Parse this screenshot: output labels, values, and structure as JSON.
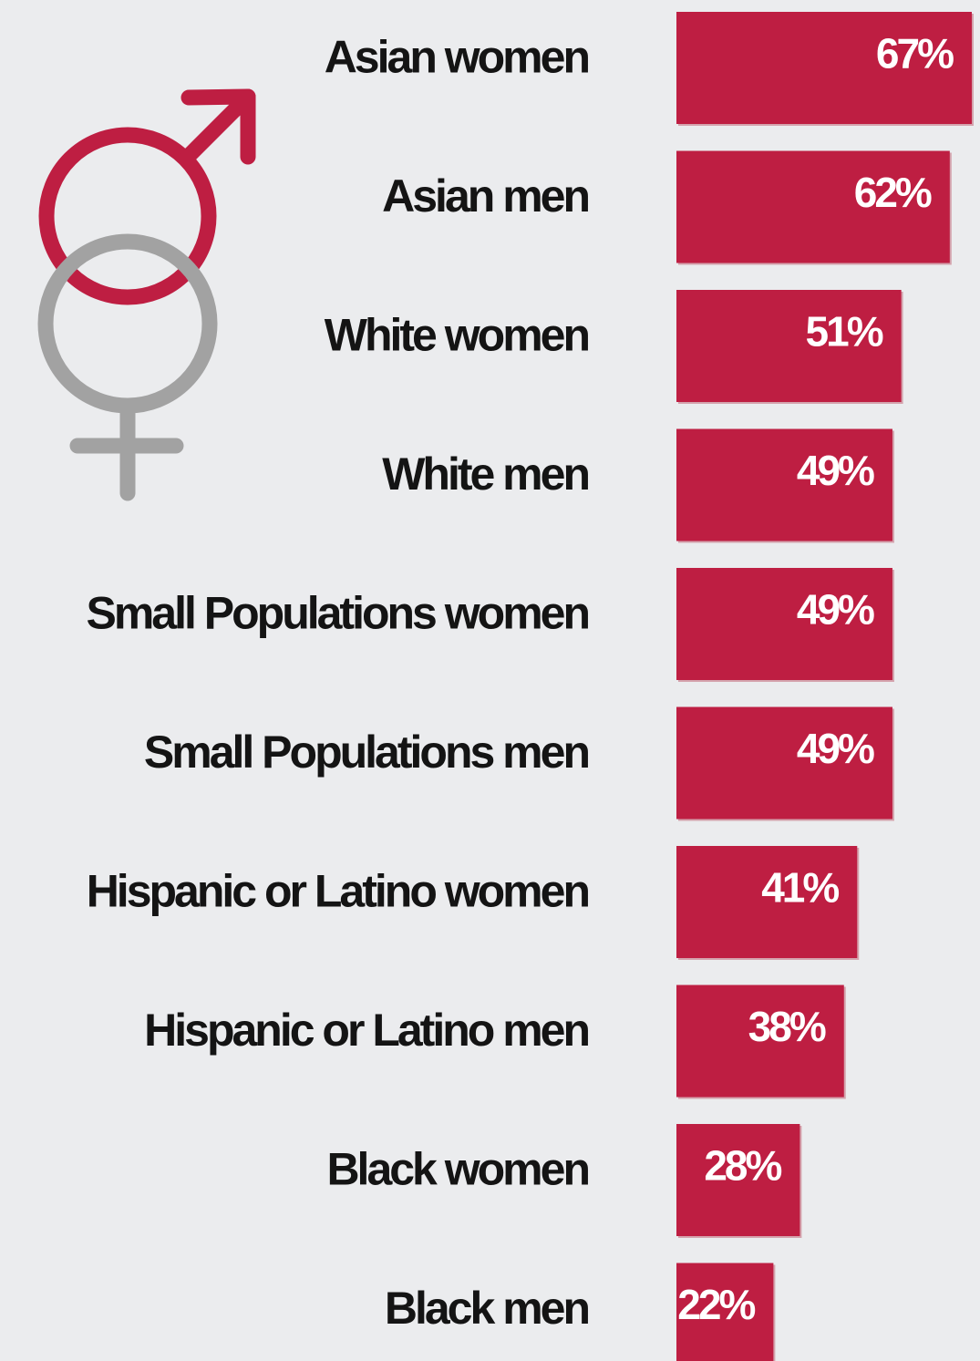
{
  "colors": {
    "background": "#ebecee",
    "bar": "#be1e42",
    "bar_shadow": "#d4a3ad",
    "label_text": "#141414",
    "value_text": "#ffffff",
    "male_symbol": "#be1e42",
    "female_symbol": "#a2a2a2"
  },
  "icon": {
    "male": "male-symbol-icon",
    "female": "female-symbol-icon"
  },
  "chart_data": {
    "type": "bar",
    "orientation": "horizontal",
    "title": "",
    "xlabel": "",
    "ylabel": "",
    "xlim": [
      0,
      67
    ],
    "grid": false,
    "legend": "none",
    "value_suffix": "%",
    "categories": [
      "Asian women",
      "Asian men",
      "White women",
      "White men",
      "Small Populations women",
      "Small Populations men",
      "Hispanic or Latino women",
      "Hispanic or Latino men",
      "Black women",
      "Black men"
    ],
    "values": [
      67,
      62,
      51,
      49,
      49,
      49,
      41,
      38,
      28,
      22
    ],
    "data_labels": [
      "67%",
      "62%",
      "51%",
      "49%",
      "49%",
      "49%",
      "41%",
      "38%",
      "28%",
      "22%"
    ]
  }
}
